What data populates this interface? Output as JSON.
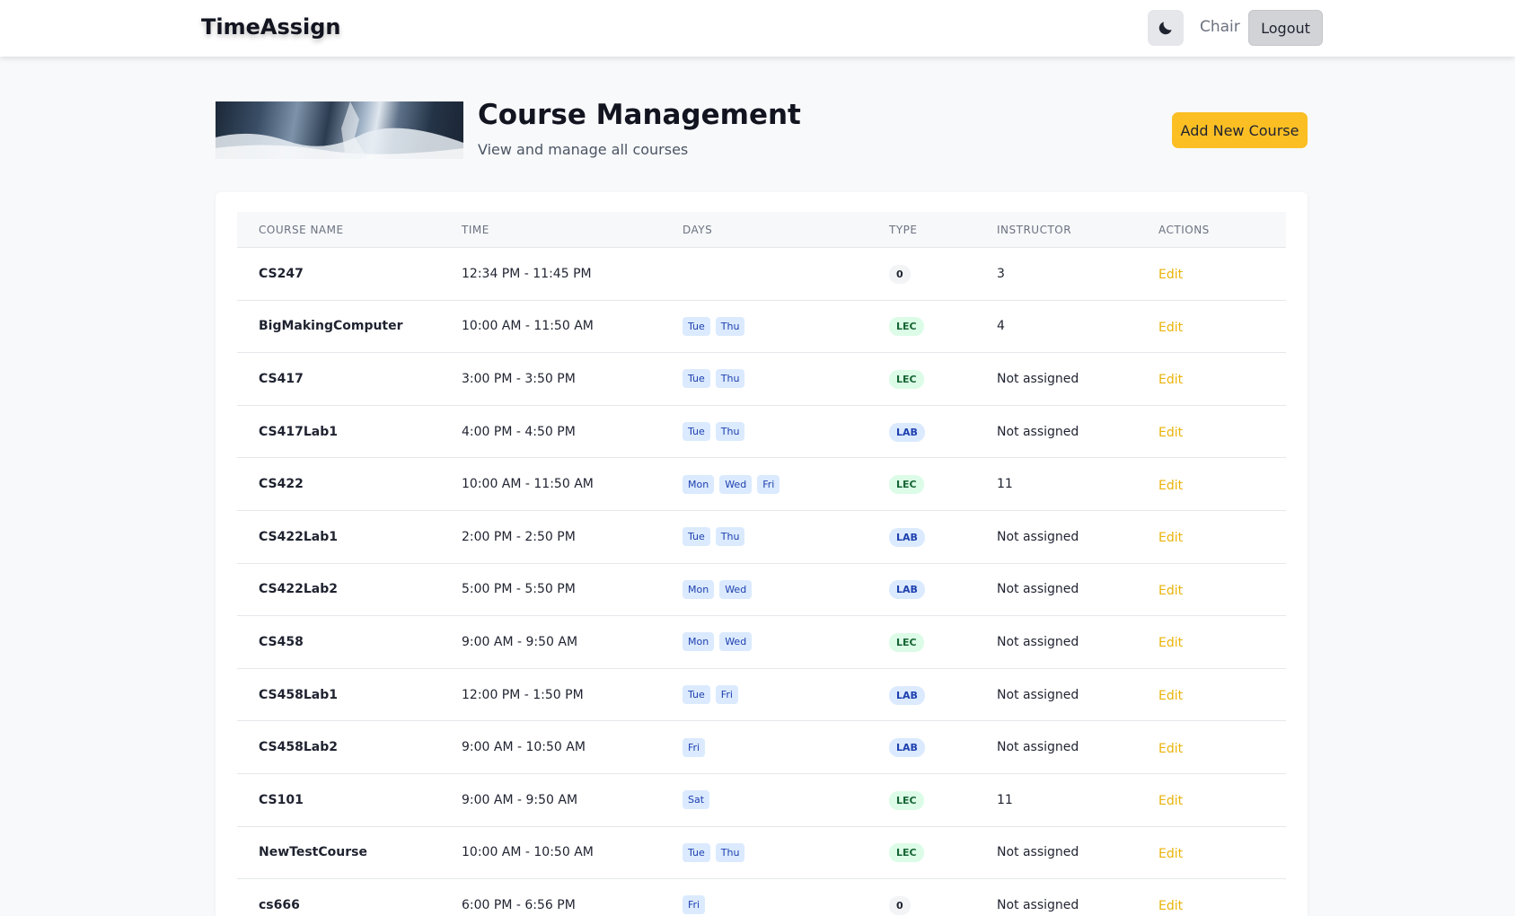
{
  "nav": {
    "brand": "TimeAssign",
    "theme_icon": "moon-icon",
    "role": "Chair",
    "logout_label": "Logout"
  },
  "header": {
    "title": "Course Management",
    "subtitle": "View and manage all courses",
    "add_label": "Add New Course"
  },
  "colors": {
    "accent": "#fbbf24",
    "edit_link": "#eab308",
    "day_tag_bg": "#dbeafe",
    "lec_badge_bg": "#dcfce7",
    "lab_badge_bg": "#dbeafe"
  },
  "table": {
    "columns": [
      "COURSE NAME",
      "TIME",
      "DAYS",
      "TYPE",
      "INSTRUCTOR",
      "ACTIONS"
    ],
    "rows": [
      {
        "name": "CS247",
        "time": "12:34 PM - 11:45 PM",
        "days": [],
        "type": "0",
        "instructor": "3",
        "action": "Edit"
      },
      {
        "name": "BigMakingComputer",
        "time": "10:00 AM - 11:50 AM",
        "days": [
          "Tue",
          "Thu"
        ],
        "type": "LEC",
        "instructor": "4",
        "action": "Edit"
      },
      {
        "name": "CS417",
        "time": "3:00 PM - 3:50 PM",
        "days": [
          "Tue",
          "Thu"
        ],
        "type": "LEC",
        "instructor": "Not assigned",
        "action": "Edit"
      },
      {
        "name": "CS417Lab1",
        "time": "4:00 PM - 4:50 PM",
        "days": [
          "Tue",
          "Thu"
        ],
        "type": "LAB",
        "instructor": "Not assigned",
        "action": "Edit"
      },
      {
        "name": "CS422",
        "time": "10:00 AM - 11:50 AM",
        "days": [
          "Mon",
          "Wed",
          "Fri"
        ],
        "type": "LEC",
        "instructor": "11",
        "action": "Edit"
      },
      {
        "name": "CS422Lab1",
        "time": "2:00 PM - 2:50 PM",
        "days": [
          "Tue",
          "Thu"
        ],
        "type": "LAB",
        "instructor": "Not assigned",
        "action": "Edit"
      },
      {
        "name": "CS422Lab2",
        "time": "5:00 PM - 5:50 PM",
        "days": [
          "Mon",
          "Wed"
        ],
        "type": "LAB",
        "instructor": "Not assigned",
        "action": "Edit"
      },
      {
        "name": "CS458",
        "time": "9:00 AM - 9:50 AM",
        "days": [
          "Mon",
          "Wed"
        ],
        "type": "LEC",
        "instructor": "Not assigned",
        "action": "Edit"
      },
      {
        "name": "CS458Lab1",
        "time": "12:00 PM - 1:50 PM",
        "days": [
          "Tue",
          "Fri"
        ],
        "type": "LAB",
        "instructor": "Not assigned",
        "action": "Edit"
      },
      {
        "name": "CS458Lab2",
        "time": "9:00 AM - 10:50 AM",
        "days": [
          "Fri"
        ],
        "type": "LAB",
        "instructor": "Not assigned",
        "action": "Edit"
      },
      {
        "name": "CS101",
        "time": "9:00 AM - 9:50 AM",
        "days": [
          "Sat"
        ],
        "type": "LEC",
        "instructor": "11",
        "action": "Edit"
      },
      {
        "name": "NewTestCourse",
        "time": "10:00 AM - 10:50 AM",
        "days": [
          "Tue",
          "Thu"
        ],
        "type": "LEC",
        "instructor": "Not assigned",
        "action": "Edit"
      },
      {
        "name": "cs666",
        "time": "6:00 PM - 6:56 PM",
        "days": [
          "Fri"
        ],
        "type": "0",
        "instructor": "Not assigned",
        "action": "Edit"
      }
    ]
  }
}
